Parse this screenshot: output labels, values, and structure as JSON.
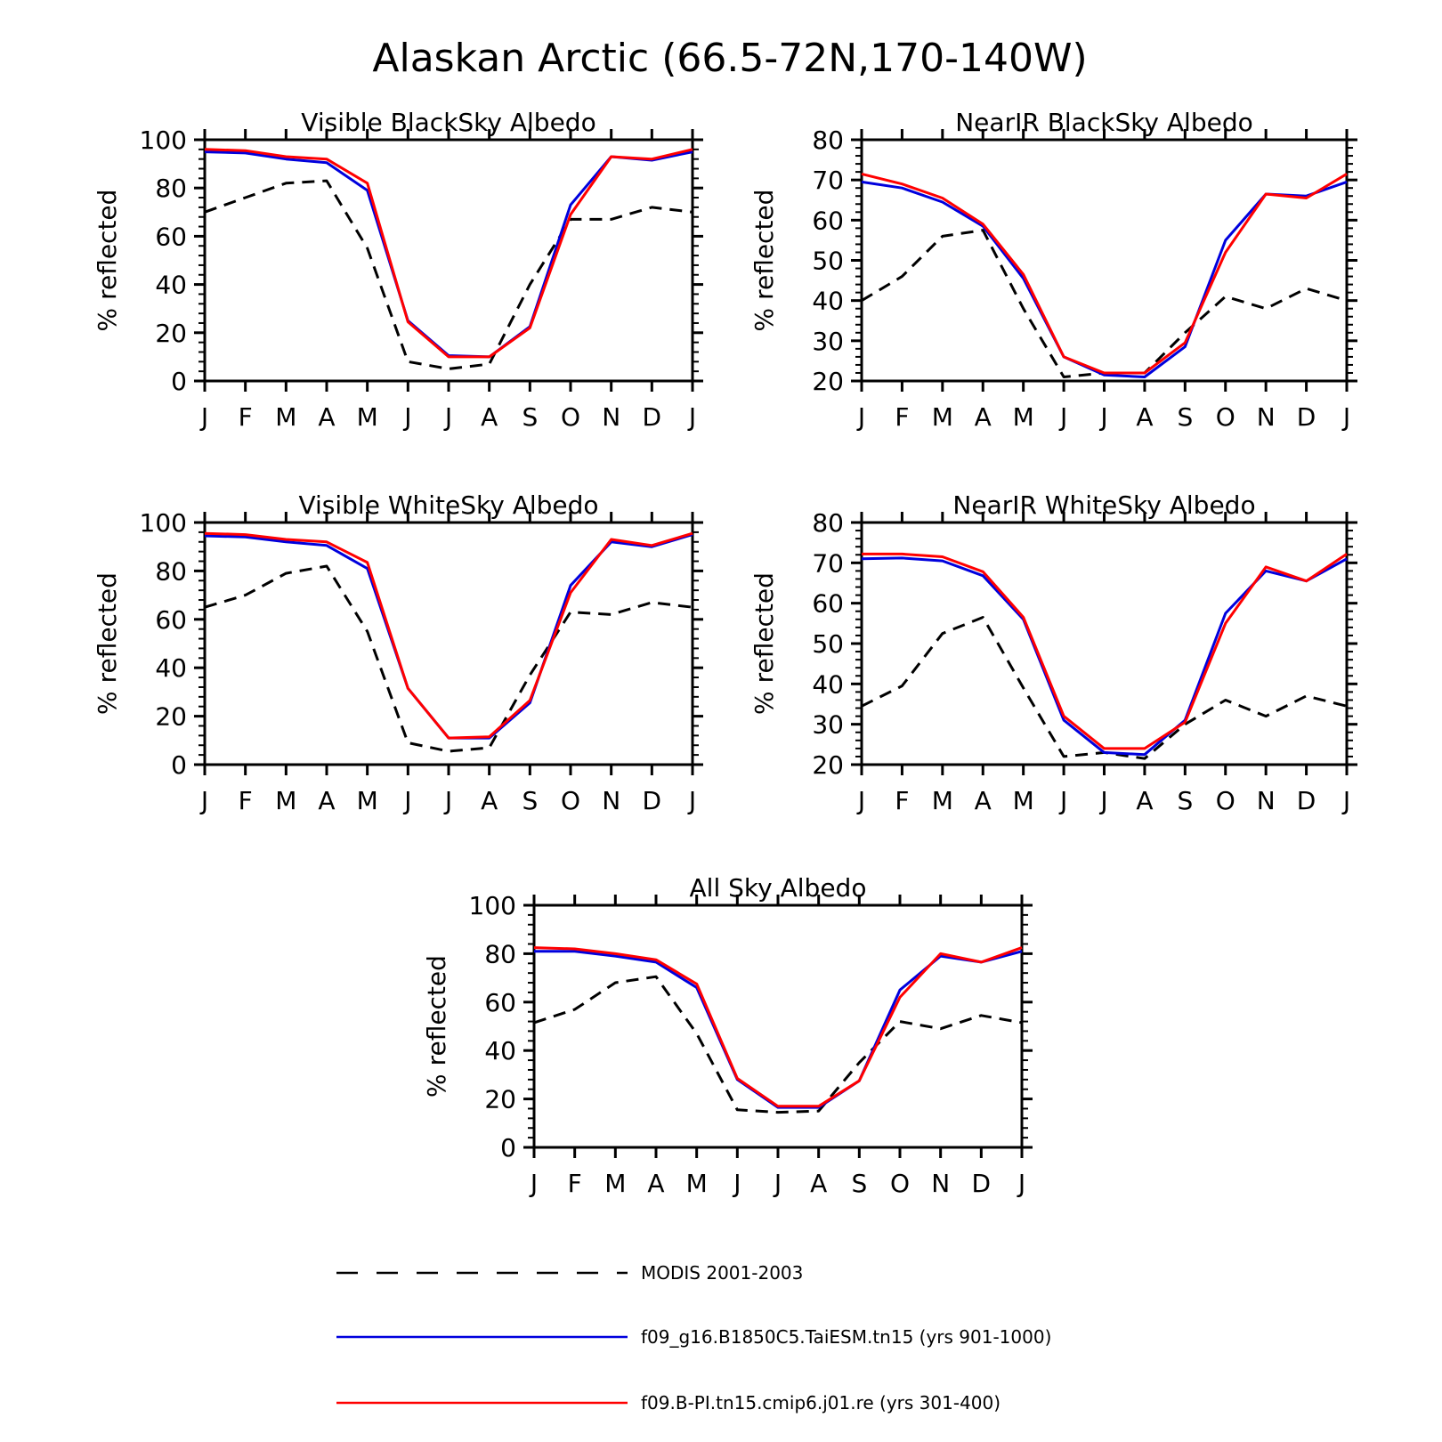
{
  "title": "Alaskan Arctic (66.5-72N,170-140W)",
  "months": [
    "J",
    "F",
    "M",
    "A",
    "M",
    "J",
    "J",
    "A",
    "S",
    "O",
    "N",
    "D",
    "J"
  ],
  "ylabel": "% reflected",
  "legend": [
    {
      "label": "MODIS 2001-2003",
      "color": "#000000",
      "dash": true
    },
    {
      "label": "f09_g16.B1850C5.TaiESM.tn15 (yrs 901-1000)",
      "color": "#0000dd",
      "dash": false
    },
    {
      "label": "f09.B-PI.tn15.cmip6.j01.re (yrs 301-400)",
      "color": "#ff0000",
      "dash": false
    }
  ],
  "chart_data": [
    {
      "type": "line",
      "title": "Visible BlackSky Albedo",
      "ylabel": "% reflected",
      "ylim": [
        0,
        100
      ],
      "yticks": [
        0,
        20,
        40,
        60,
        80,
        100
      ],
      "categories": [
        "J",
        "F",
        "M",
        "A",
        "M",
        "J",
        "J",
        "A",
        "S",
        "O",
        "N",
        "D",
        "J"
      ],
      "series": [
        {
          "name": "MODIS 2001-2003",
          "values": [
            70,
            76,
            82,
            83,
            55,
            8,
            5,
            7,
            40,
            67,
            67,
            72,
            70
          ]
        },
        {
          "name": "f09_g16.B1850C5.TaiESM.tn15 (yrs 901-1000)",
          "values": [
            95,
            94.5,
            92,
            90.5,
            79,
            25,
            10.5,
            10,
            22.5,
            73,
            93,
            91.5,
            95
          ]
        },
        {
          "name": "f09.B-PI.tn15.cmip6.j01.re (yrs 301-400)",
          "values": [
            96,
            95.5,
            93,
            92,
            82,
            24.5,
            10,
            10,
            22,
            69,
            93,
            92,
            96
          ]
        }
      ]
    },
    {
      "type": "line",
      "title": "NearIR BlackSky Albedo",
      "ylabel": "% reflected",
      "ylim": [
        20,
        80
      ],
      "yticks": [
        20,
        30,
        40,
        50,
        60,
        70,
        80
      ],
      "categories": [
        "J",
        "F",
        "M",
        "A",
        "M",
        "J",
        "J",
        "A",
        "S",
        "O",
        "N",
        "D",
        "J"
      ],
      "series": [
        {
          "name": "MODIS 2001-2003",
          "values": [
            40,
            46,
            56,
            57.5,
            38,
            21,
            22,
            22,
            32,
            41,
            38,
            43,
            40
          ]
        },
        {
          "name": "f09_g16.B1850C5.TaiESM.tn15 (yrs 901-1000)",
          "values": [
            69.5,
            68,
            64.5,
            58.5,
            45.5,
            26,
            21.5,
            21,
            28.5,
            55,
            66.5,
            66,
            69.5
          ]
        },
        {
          "name": "f09.B-PI.tn15.cmip6.j01.re (yrs 301-400)",
          "values": [
            71.5,
            69,
            65.5,
            59,
            46.5,
            26,
            22,
            22,
            29.5,
            52,
            66.5,
            65.5,
            71.5
          ]
        }
      ]
    },
    {
      "type": "line",
      "title": "Visible WhiteSky Albedo",
      "ylabel": "% reflected",
      "ylim": [
        0,
        100
      ],
      "yticks": [
        0,
        20,
        40,
        60,
        80,
        100
      ],
      "categories": [
        "J",
        "F",
        "M",
        "A",
        "M",
        "J",
        "J",
        "A",
        "S",
        "O",
        "N",
        "D",
        "J"
      ],
      "series": [
        {
          "name": "MODIS 2001-2003",
          "values": [
            65,
            70,
            79,
            82,
            55,
            9,
            5.5,
            7,
            37,
            63,
            62,
            67,
            65
          ]
        },
        {
          "name": "f09_g16.B1850C5.TaiESM.tn15 (yrs 901-1000)",
          "values": [
            94.5,
            94,
            92,
            90.5,
            81,
            31.5,
            11,
            11,
            25.5,
            74,
            92,
            90,
            95
          ]
        },
        {
          "name": "f09.B-PI.tn15.cmip6.j01.re (yrs 301-400)",
          "values": [
            95.5,
            95,
            93,
            92,
            83.5,
            31.5,
            11,
            11.5,
            26.5,
            71,
            93,
            90.5,
            95.5
          ]
        }
      ]
    },
    {
      "type": "line",
      "title": "NearIR WhiteSky Albedo",
      "ylabel": "% reflected",
      "ylim": [
        20,
        80
      ],
      "yticks": [
        20,
        30,
        40,
        50,
        60,
        70,
        80
      ],
      "categories": [
        "J",
        "F",
        "M",
        "A",
        "M",
        "J",
        "J",
        "A",
        "S",
        "O",
        "N",
        "D",
        "J"
      ],
      "series": [
        {
          "name": "MODIS 2001-2003",
          "values": [
            34.5,
            39.5,
            52.5,
            56.5,
            39,
            22,
            23,
            21.5,
            30,
            36,
            32,
            37,
            34.5
          ]
        },
        {
          "name": "f09_g16.B1850C5.TaiESM.tn15 (yrs 901-1000)",
          "values": [
            71,
            71.2,
            70.5,
            66.8,
            56,
            31,
            23,
            22.5,
            31,
            57.5,
            68,
            65.5,
            71
          ]
        },
        {
          "name": "f09.B-PI.tn15.cmip6.j01.re (yrs 301-400)",
          "values": [
            72.2,
            72.2,
            71.5,
            67.8,
            56.5,
            32,
            24,
            24,
            30.5,
            55,
            69,
            65.5,
            72.2
          ]
        }
      ]
    },
    {
      "type": "line",
      "title": "All Sky Albedo",
      "ylabel": "% reflected",
      "ylim": [
        0,
        100
      ],
      "yticks": [
        0,
        20,
        40,
        60,
        80,
        100
      ],
      "categories": [
        "J",
        "F",
        "M",
        "A",
        "M",
        "J",
        "J",
        "A",
        "S",
        "O",
        "N",
        "D",
        "J"
      ],
      "series": [
        {
          "name": "MODIS 2001-2003",
          "values": [
            51.5,
            57,
            68,
            70.5,
            47,
            15.5,
            14.5,
            15,
            35,
            52,
            49,
            54.5,
            51.5
          ]
        },
        {
          "name": "f09_g16.B1850C5.TaiESM.tn15 (yrs 901-1000)",
          "values": [
            81,
            81,
            79,
            76.5,
            66,
            28,
            16.5,
            16.5,
            27.5,
            65,
            79,
            76.5,
            81
          ]
        },
        {
          "name": "f09.B-PI.tn15.cmip6.j01.re (yrs 301-400)",
          "values": [
            82.5,
            82,
            80,
            77.5,
            67.5,
            28.5,
            17,
            17,
            27.5,
            62,
            80,
            76.5,
            82.5
          ]
        }
      ]
    }
  ]
}
